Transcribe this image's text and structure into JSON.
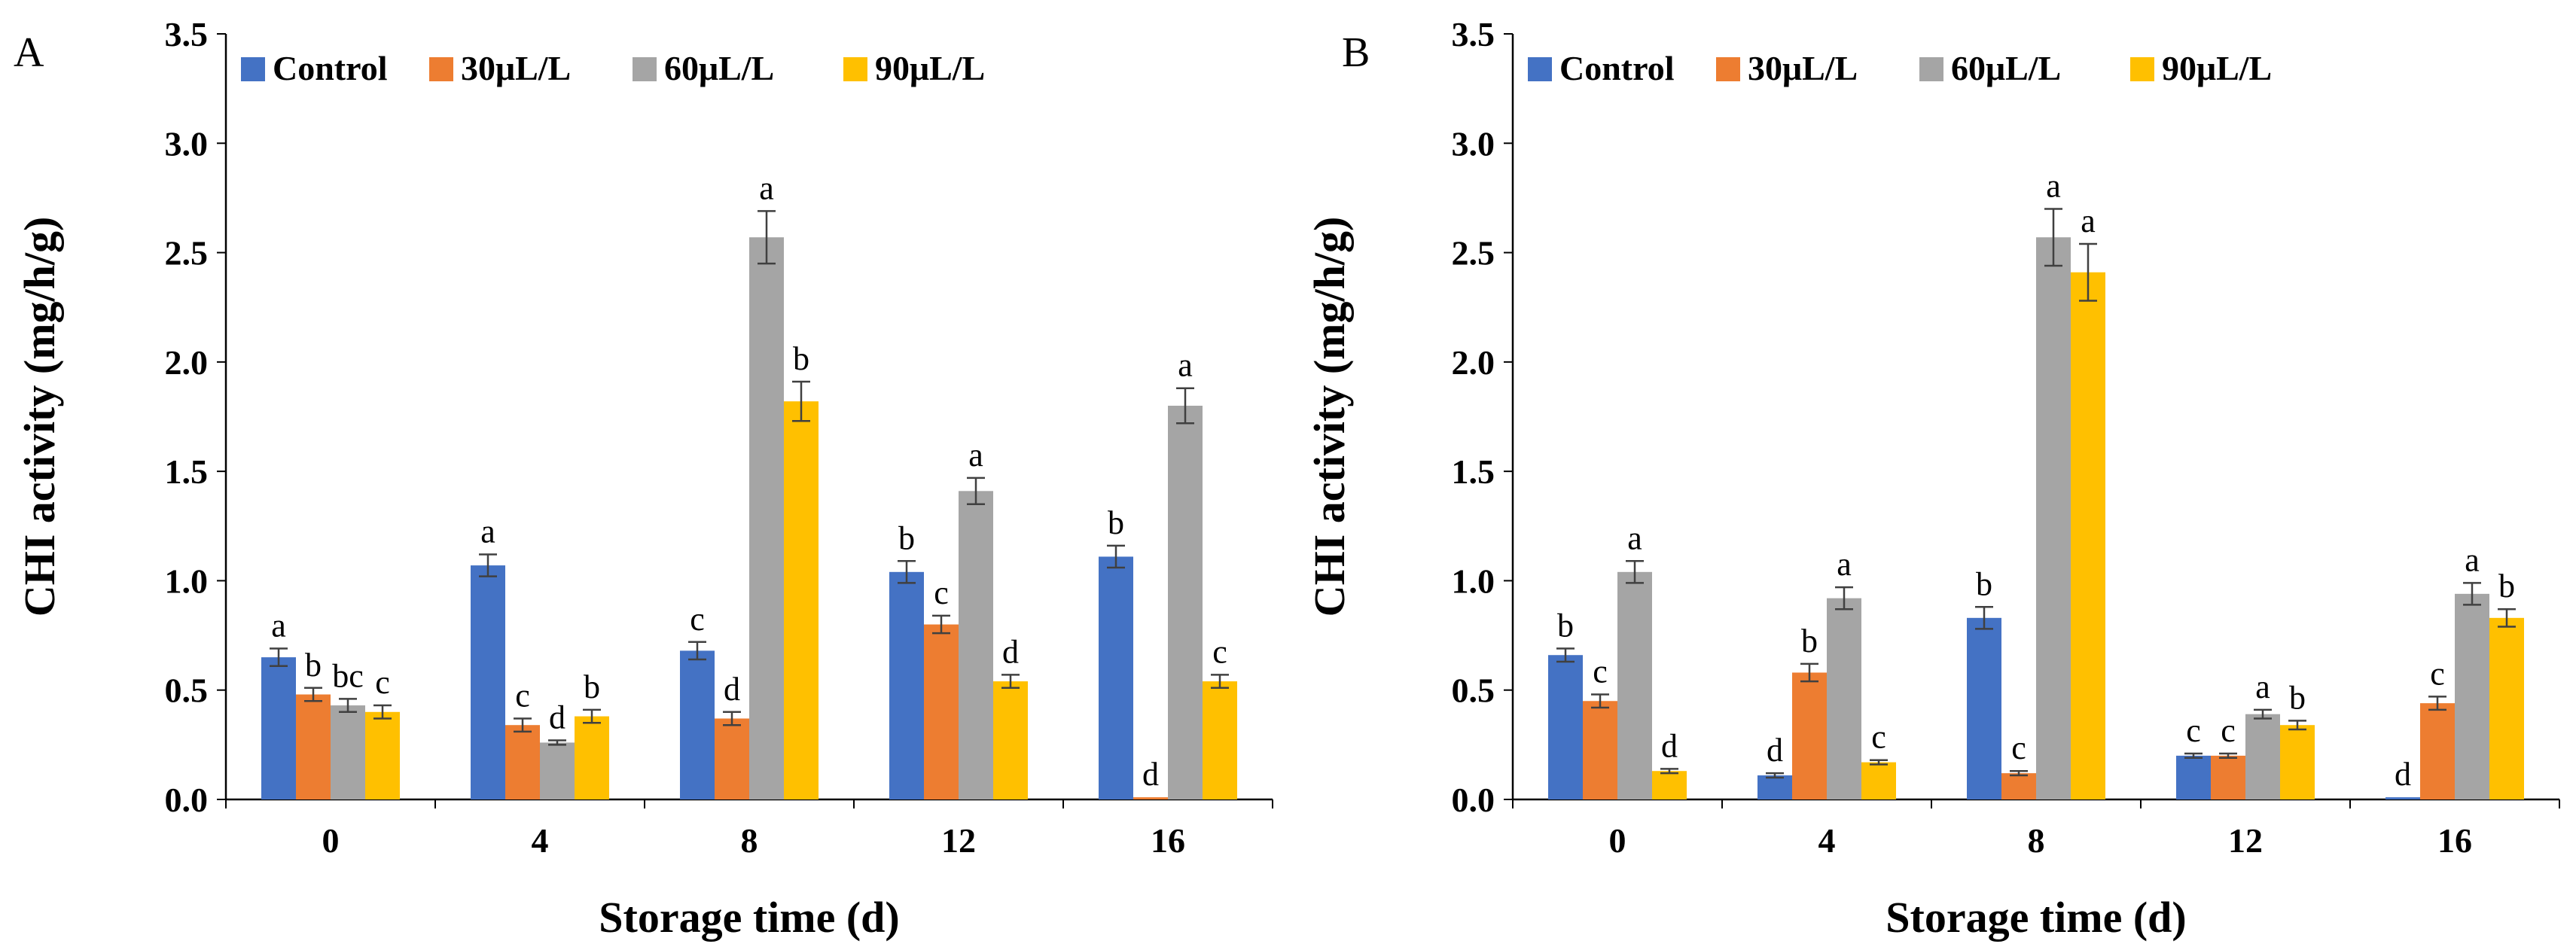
{
  "colors": {
    "Control": "#4472C4",
    "30μL/L": "#ED7D31",
    "60μL/L": "#A5A5A5",
    "90μL/L": "#FFC000"
  },
  "chart_data": [
    {
      "type": "bar",
      "panel_label": "A",
      "xlabel": "Storage time (d)",
      "ylabel": "CHI activity (mg/h/g)",
      "ylim": [
        0,
        3.5
      ],
      "yticks": [
        "0.0",
        "0.5",
        "1.0",
        "1.5",
        "2.0",
        "2.5",
        "3.0",
        "3.5"
      ],
      "categories": [
        "0",
        "4",
        "8",
        "12",
        "16"
      ],
      "legend_position": "top-left",
      "series": [
        {
          "name": "Control",
          "values": [
            0.65,
            1.07,
            0.68,
            1.04,
            1.11
          ],
          "errors": [
            0.04,
            0.05,
            0.04,
            0.05,
            0.05
          ],
          "labels": [
            "a",
            "a",
            "c",
            "b",
            "b"
          ]
        },
        {
          "name": "30μL/L",
          "values": [
            0.48,
            0.34,
            0.37,
            0.8,
            0.01
          ],
          "errors": [
            0.03,
            0.03,
            0.03,
            0.04,
            0.0
          ],
          "labels": [
            "b",
            "c",
            "d",
            "c",
            "d"
          ]
        },
        {
          "name": "60μL/L",
          "values": [
            0.43,
            0.26,
            2.57,
            1.41,
            1.8
          ],
          "errors": [
            0.03,
            0.01,
            0.12,
            0.06,
            0.08
          ],
          "labels": [
            "bc",
            "d",
            "a",
            "a",
            "a"
          ]
        },
        {
          "name": "90μL/L",
          "values": [
            0.4,
            0.38,
            1.82,
            0.54,
            0.54
          ],
          "errors": [
            0.03,
            0.03,
            0.09,
            0.03,
            0.03
          ],
          "labels": [
            "c",
            "b",
            "b",
            "d",
            "c"
          ]
        }
      ]
    },
    {
      "type": "bar",
      "panel_label": "B",
      "xlabel": "Storage time (d)",
      "ylabel": "CHI activity (mg/h/g)",
      "ylim": [
        0,
        3.5
      ],
      "yticks": [
        "0.0",
        "0.5",
        "1.0",
        "1.5",
        "2.0",
        "2.5",
        "3.0",
        "3.5"
      ],
      "categories": [
        "0",
        "4",
        "8",
        "12",
        "16"
      ],
      "legend_position": "top-left",
      "series": [
        {
          "name": "Control",
          "values": [
            0.66,
            0.11,
            0.83,
            0.2,
            0.01
          ],
          "errors": [
            0.03,
            0.01,
            0.05,
            0.01,
            0.0
          ],
          "labels": [
            "b",
            "d",
            "b",
            "c",
            "d"
          ]
        },
        {
          "name": "30μL/L",
          "values": [
            0.45,
            0.58,
            0.12,
            0.2,
            0.44
          ],
          "errors": [
            0.03,
            0.04,
            0.01,
            0.01,
            0.03
          ],
          "labels": [
            "c",
            "b",
            "c",
            "c",
            "c"
          ]
        },
        {
          "name": "60μL/L",
          "values": [
            1.04,
            0.92,
            2.57,
            0.39,
            0.94
          ],
          "errors": [
            0.05,
            0.05,
            0.13,
            0.02,
            0.05
          ],
          "labels": [
            "a",
            "a",
            "a",
            "a",
            "a"
          ]
        },
        {
          "name": "90μL/L",
          "values": [
            0.13,
            0.17,
            2.41,
            0.34,
            0.83
          ],
          "errors": [
            0.01,
            0.01,
            0.13,
            0.02,
            0.04
          ],
          "labels": [
            "d",
            "c",
            "a",
            "b",
            "b"
          ]
        }
      ]
    }
  ]
}
